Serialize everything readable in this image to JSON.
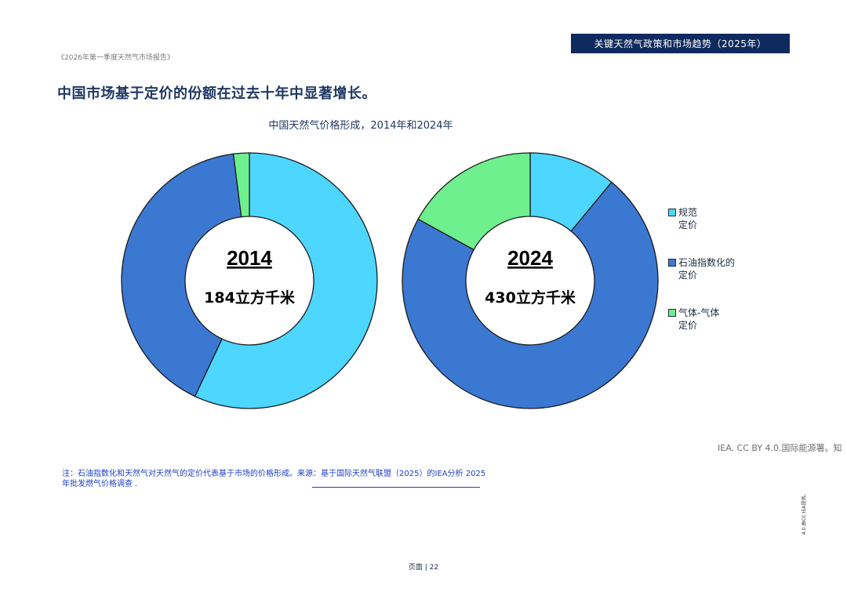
{
  "header": {
    "title": "关键天然气政策和市场趋势（2025年）"
  },
  "report_name": "《2026年第一季度天然气市场报告》",
  "page_heading": "中国市场基于定价的份额在过去十年中显著增长。",
  "chart_data": {
    "type": "pie",
    "title": "中国天然气价格形成，2014年和2024年",
    "legend_position": "right",
    "categories": [
      "规范定价",
      "石油指数化的定价",
      "气体-气体定价"
    ],
    "colors": [
      "#4dd6ff",
      "#3b78d2",
      "#6ef08e"
    ],
    "charts": [
      {
        "year": "2014",
        "total": "184立方千米",
        "values": [
          57,
          41,
          2
        ]
      },
      {
        "year": "2024",
        "total": "430立方千米",
        "values": [
          11,
          72,
          17
        ]
      }
    ]
  },
  "legend": [
    {
      "label": "规范\n定价",
      "color": "#4dd6ff"
    },
    {
      "label": "石油指数化的\n定价",
      "color": "#3b78d2"
    },
    {
      "label": "气体-气体\n定价",
      "color": "#6ef08e"
    }
  ],
  "credit": "IEA. CC BY 4.0.国际能源署。知",
  "note": "注：石油指数化和天然气对天然气的定价代表基于市场的价格形成。来源：基于国际天然气联盟（2025）的IEA分析 2025年批发燃气价格调查 .",
  "side_license": "4.0.由CC IEA提供。",
  "page_number": "页面 | 22"
}
